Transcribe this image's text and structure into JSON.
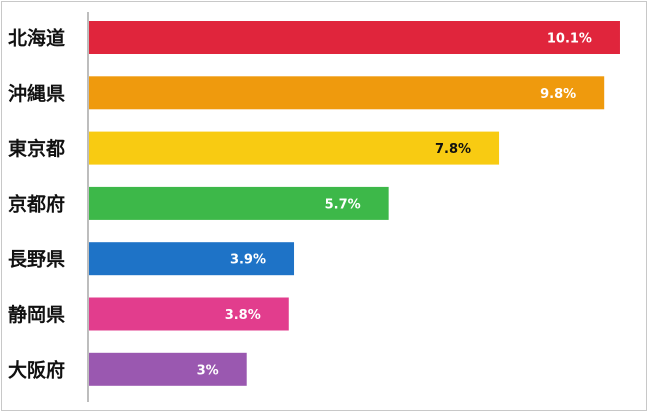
{
  "chart_data": {
    "type": "bar",
    "orientation": "horizontal",
    "categories": [
      "北海道",
      "沖縄県",
      "東京都",
      "京都府",
      "長野県",
      "静岡県",
      "大阪府"
    ],
    "values": [
      10.1,
      9.8,
      7.8,
      5.7,
      3.9,
      3.8,
      3
    ],
    "value_labels": [
      "10.1%",
      "9.8%",
      "7.8%",
      "5.7%",
      "3.9%",
      "3.8%",
      "3%"
    ],
    "colors": [
      "#e0253c",
      "#ef9a0d",
      "#f8cb12",
      "#3db849",
      "#1e73c7",
      "#e23d8d",
      "#9a58b0"
    ],
    "label_colors": [
      "#ffffff",
      "#ffffff",
      "#111111",
      "#ffffff",
      "#ffffff",
      "#ffffff",
      "#ffffff"
    ],
    "xlim": [
      0,
      10.5
    ],
    "grid": false,
    "title": "",
    "xlabel": "",
    "ylabel": ""
  }
}
